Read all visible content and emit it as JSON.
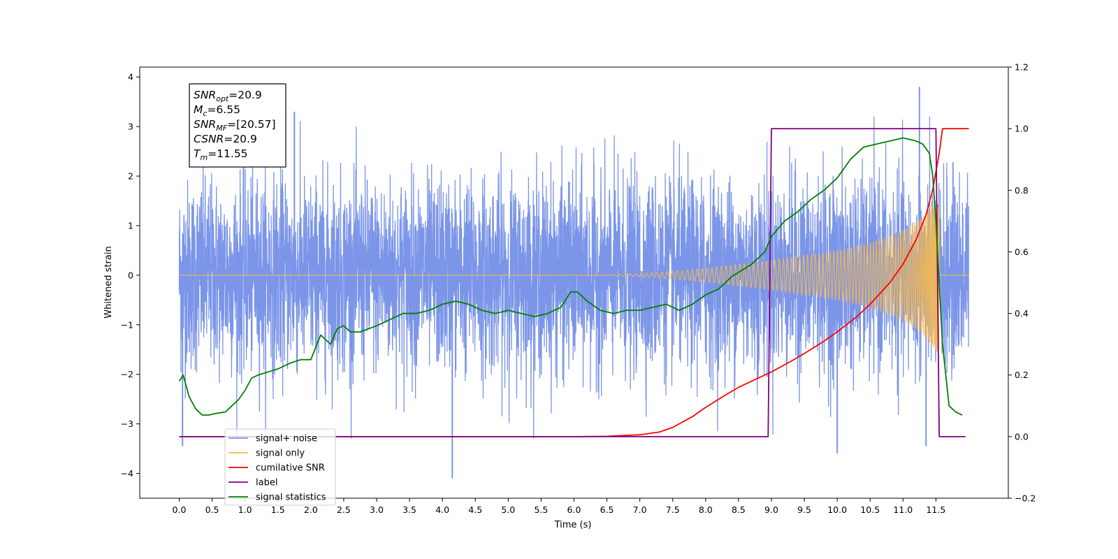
{
  "chart_data": {
    "type": "line",
    "xlabel": "Time (s)",
    "ylabel": "Whitened strain",
    "xlim": [
      -0.6,
      12.6
    ],
    "ylim": [
      -4.5,
      4.2
    ],
    "ylim_right": [
      -0.2,
      1.2
    ],
    "xticks": [
      "0.0",
      "0.5",
      "1.0",
      "1.5",
      "2.0",
      "2.5",
      "3.0",
      "3.5",
      "4.0",
      "4.5",
      "5.0",
      "5.5",
      "6.0",
      "6.5",
      "7.0",
      "7.5",
      "8.0",
      "8.5",
      "9.0",
      "9.5",
      "10.0",
      "10.5",
      "11.0",
      "11.5"
    ],
    "yticks_left": [
      "−4",
      "−3",
      "−2",
      "−1",
      "0",
      "1",
      "2",
      "3",
      "4"
    ],
    "yticks_right": [
      "−0.2",
      "0.0",
      "0.2",
      "0.4",
      "0.6",
      "0.8",
      "1.0",
      "1.2"
    ],
    "grid": false,
    "legend_position": "lower-left",
    "annotation": {
      "lines": [
        {
          "name": "SNR",
          "sub": "opt",
          "value": "=20.9"
        },
        {
          "name": "M",
          "sub": "c",
          "value": "=6.55"
        },
        {
          "name": "SNR",
          "sub": "MF",
          "value": "=[20.57]"
        },
        {
          "name": "CSNR",
          "sub": "",
          "value": "=20.9"
        },
        {
          "name": "T",
          "sub": "m",
          "value": "=11.55"
        }
      ]
    },
    "series": [
      {
        "name": "signal+ noise",
        "color": "#7b95e8",
        "axis": "left",
        "style": "noise",
        "x_range": [
          0.0,
          12.0
        ],
        "std": 1.0,
        "extreme_peaks": [
          [
            1.75,
            3.3
          ],
          [
            4.15,
            -4.1
          ],
          [
            11.25,
            3.8
          ],
          [
            10.0,
            -3.6
          ],
          [
            0.05,
            -3.45
          ],
          [
            11.35,
            -3.45
          ]
        ]
      },
      {
        "name": "signal only",
        "color": "#f5b84f",
        "axis": "left",
        "style": "chirp",
        "merger_time": 11.55,
        "envelope": [
          [
            6.5,
            0.01
          ],
          [
            7.0,
            0.03
          ],
          [
            7.5,
            0.08
          ],
          [
            8.0,
            0.14
          ],
          [
            8.5,
            0.22
          ],
          [
            9.0,
            0.3
          ],
          [
            9.5,
            0.4
          ],
          [
            10.0,
            0.5
          ],
          [
            10.5,
            0.66
          ],
          [
            11.0,
            0.9
          ],
          [
            11.3,
            1.2
          ],
          [
            11.55,
            1.6
          ]
        ]
      },
      {
        "name": "cumilative SNR",
        "color": "#ff0000",
        "axis": "right",
        "x": [
          0,
          6.0,
          6.5,
          7.0,
          7.3,
          7.5,
          7.8,
          8.0,
          8.3,
          8.5,
          8.8,
          9.0,
          9.3,
          9.5,
          9.8,
          10.0,
          10.3,
          10.5,
          10.8,
          11.0,
          11.2,
          11.35,
          11.45,
          11.5,
          11.55,
          11.6,
          12.0
        ],
        "y": [
          0,
          0,
          0.001,
          0.006,
          0.015,
          0.03,
          0.065,
          0.095,
          0.135,
          0.16,
          0.19,
          0.21,
          0.245,
          0.27,
          0.31,
          0.34,
          0.39,
          0.43,
          0.5,
          0.56,
          0.64,
          0.72,
          0.8,
          0.86,
          0.92,
          1.0,
          1.0
        ]
      },
      {
        "name": "label",
        "color": "#800080",
        "axis": "right",
        "x": [
          0,
          8.95,
          9.0,
          11.5,
          11.55,
          11.95
        ],
        "y": [
          0,
          0,
          1.0,
          1.0,
          0,
          0
        ]
      },
      {
        "name": "signal statistics",
        "color": "#008000",
        "axis": "right",
        "x": [
          0.0,
          0.06,
          0.15,
          0.25,
          0.35,
          0.45,
          0.55,
          0.7,
          0.8,
          0.9,
          1.0,
          1.1,
          1.2,
          1.35,
          1.5,
          1.7,
          1.85,
          2.0,
          2.15,
          2.3,
          2.4,
          2.5,
          2.6,
          2.75,
          3.0,
          3.2,
          3.4,
          3.6,
          3.8,
          4.0,
          4.2,
          4.4,
          4.6,
          4.8,
          5.0,
          5.2,
          5.4,
          5.6,
          5.8,
          5.95,
          6.05,
          6.2,
          6.4,
          6.6,
          6.8,
          7.0,
          7.2,
          7.4,
          7.6,
          7.8,
          8.0,
          8.2,
          8.4,
          8.55,
          8.7,
          8.9,
          9.0,
          9.2,
          9.4,
          9.6,
          9.8,
          10.0,
          10.2,
          10.4,
          10.6,
          10.8,
          11.0,
          11.2,
          11.3,
          11.4,
          11.45,
          11.5,
          11.55,
          11.6,
          11.7,
          11.8,
          11.9
        ],
        "y": [
          0.18,
          0.2,
          0.13,
          0.09,
          0.07,
          0.07,
          0.075,
          0.08,
          0.1,
          0.12,
          0.15,
          0.19,
          0.2,
          0.21,
          0.22,
          0.24,
          0.25,
          0.25,
          0.33,
          0.3,
          0.35,
          0.36,
          0.34,
          0.34,
          0.36,
          0.38,
          0.4,
          0.4,
          0.41,
          0.43,
          0.44,
          0.43,
          0.41,
          0.4,
          0.41,
          0.4,
          0.39,
          0.4,
          0.42,
          0.47,
          0.47,
          0.44,
          0.41,
          0.4,
          0.41,
          0.41,
          0.42,
          0.43,
          0.41,
          0.43,
          0.46,
          0.48,
          0.52,
          0.54,
          0.56,
          0.6,
          0.65,
          0.7,
          0.73,
          0.77,
          0.8,
          0.84,
          0.9,
          0.94,
          0.95,
          0.96,
          0.97,
          0.96,
          0.95,
          0.92,
          0.85,
          0.7,
          0.5,
          0.3,
          0.1,
          0.08,
          0.07
        ]
      }
    ],
    "legend_overlap_text": "signal only"
  }
}
